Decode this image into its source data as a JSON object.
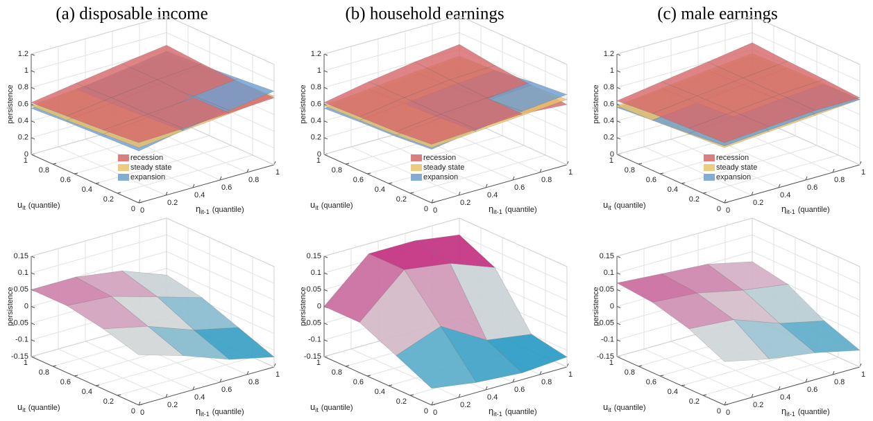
{
  "chart_data": [
    {
      "type": "surface",
      "title": "(a) disposable income",
      "zlabel": "persistence",
      "xlabel": {
        "symbol": "η",
        "subscript": "it-1",
        "text": "(quantile)"
      },
      "ylabel": {
        "symbol": "u",
        "subscript": "it",
        "text": "(quantile)"
      },
      "x": [
        0,
        0.33,
        0.67,
        1
      ],
      "y": [
        0,
        0.33,
        0.67,
        1
      ],
      "xlim": [
        0,
        1
      ],
      "ylim": [
        0,
        1
      ],
      "zlim": [
        0,
        1.2
      ],
      "xticks": [
        0,
        0.2,
        0.4,
        0.6,
        0.8,
        1
      ],
      "yticks": [
        0,
        0.2,
        0.4,
        0.6,
        0.8,
        1
      ],
      "zticks": [
        0,
        0.2,
        0.4,
        0.6,
        0.8,
        1,
        1.2
      ],
      "grid": true,
      "legend": true,
      "series": [
        {
          "name": "recession",
          "color": "#d7696b",
          "values": [
            [
              0.72,
              0.74,
              0.77,
              0.8
            ],
            [
              0.68,
              0.72,
              0.76,
              0.8
            ],
            [
              0.65,
              0.72,
              0.78,
              0.82
            ],
            [
              0.62,
              0.7,
              0.78,
              0.85
            ]
          ]
        },
        {
          "name": "steady state",
          "color": "#eac26a",
          "values": [
            [
              0.66,
              0.71,
              0.76,
              0.82
            ],
            [
              0.63,
              0.68,
              0.74,
              0.8
            ],
            [
              0.6,
              0.65,
              0.71,
              0.77
            ],
            [
              0.58,
              0.63,
              0.68,
              0.74
            ]
          ]
        },
        {
          "name": "expansion",
          "color": "#6f9fcf",
          "values": [
            [
              0.62,
              0.72,
              0.8,
              0.88
            ],
            [
              0.6,
              0.68,
              0.78,
              0.84
            ],
            [
              0.58,
              0.65,
              0.72,
              0.8
            ],
            [
              0.55,
              0.62,
              0.7,
              0.78
            ]
          ]
        }
      ]
    },
    {
      "type": "surface",
      "title": "(b) household earnings",
      "zlabel": "persistence",
      "xlabel": {
        "symbol": "η",
        "subscript": "it-1",
        "text": "(quantile)"
      },
      "ylabel": {
        "symbol": "u",
        "subscript": "it",
        "text": "(quantile)"
      },
      "x": [
        0,
        0.33,
        0.67,
        1
      ],
      "y": [
        0,
        0.33,
        0.67,
        1
      ],
      "xlim": [
        0,
        1
      ],
      "ylim": [
        0,
        1
      ],
      "zlim": [
        0,
        1.2
      ],
      "xticks": [
        0,
        0.2,
        0.4,
        0.6,
        0.8,
        1
      ],
      "yticks": [
        0,
        0.2,
        0.4,
        0.6,
        0.8,
        1
      ],
      "zticks": [
        0,
        0.2,
        0.4,
        0.6,
        0.8,
        1,
        1.2
      ],
      "grid": true,
      "legend": true,
      "series": [
        {
          "name": "recession",
          "color": "#d7696b",
          "values": [
            [
              0.7,
              0.73,
              0.76,
              0.72
            ],
            [
              0.66,
              0.72,
              0.76,
              0.76
            ],
            [
              0.64,
              0.72,
              0.78,
              0.8
            ],
            [
              0.62,
              0.72,
              0.8,
              0.86
            ]
          ]
        },
        {
          "name": "steady state",
          "color": "#eac26a",
          "values": [
            [
              0.66,
              0.7,
              0.74,
              0.78
            ],
            [
              0.62,
              0.67,
              0.72,
              0.76
            ],
            [
              0.6,
              0.65,
              0.7,
              0.74
            ],
            [
              0.58,
              0.63,
              0.68,
              0.72
            ]
          ]
        },
        {
          "name": "expansion",
          "color": "#6f9fcf",
          "values": [
            [
              0.64,
              0.72,
              0.79,
              0.84
            ],
            [
              0.6,
              0.68,
              0.75,
              0.8
            ],
            [
              0.58,
              0.64,
              0.7,
              0.74
            ],
            [
              0.55,
              0.6,
              0.65,
              0.7
            ]
          ]
        }
      ]
    },
    {
      "type": "surface",
      "title": "(c) male earnings",
      "zlabel": "persistence",
      "xlabel": {
        "symbol": "η",
        "subscript": "it-1",
        "text": "(quantile)"
      },
      "ylabel": {
        "symbol": "u",
        "subscript": "it",
        "text": "(quantile)"
      },
      "x": [
        0,
        0.33,
        0.67,
        1
      ],
      "y": [
        0,
        0.33,
        0.67,
        1
      ],
      "xlim": [
        0,
        1
      ],
      "ylim": [
        0,
        1
      ],
      "zlim": [
        0,
        1.2
      ],
      "xticks": [
        0,
        0.2,
        0.4,
        0.6,
        0.8,
        1
      ],
      "yticks": [
        0,
        0.2,
        0.4,
        0.6,
        0.8,
        1
      ],
      "zticks": [
        0,
        0.2,
        0.4,
        0.6,
        0.8,
        1,
        1.2
      ],
      "grid": true,
      "legend": true,
      "series": [
        {
          "name": "recession",
          "color": "#d7696b",
          "values": [
            [
              0.72,
              0.76,
              0.8,
              0.8
            ],
            [
              0.7,
              0.75,
              0.8,
              0.83
            ],
            [
              0.68,
              0.74,
              0.8,
              0.85
            ],
            [
              0.64,
              0.72,
              0.8,
              0.88
            ]
          ]
        },
        {
          "name": "steady state",
          "color": "#eac26a",
          "values": [
            [
              0.66,
              0.7,
              0.74,
              0.78
            ],
            [
              0.63,
              0.68,
              0.73,
              0.78
            ],
            [
              0.6,
              0.66,
              0.72,
              0.77
            ],
            [
              0.58,
              0.64,
              0.7,
              0.75
            ]
          ]
        },
        {
          "name": "expansion",
          "color": "#6f9fcf",
          "values": [
            [
              0.68,
              0.72,
              0.76,
              0.78
            ],
            [
              0.64,
              0.69,
              0.74,
              0.77
            ],
            [
              0.6,
              0.65,
              0.7,
              0.74
            ],
            [
              0.56,
              0.62,
              0.67,
              0.72
            ]
          ]
        }
      ]
    },
    {
      "type": "surface",
      "zlabel": "persistence",
      "xlabel": {
        "symbol": "η",
        "subscript": "it-1",
        "text": "(quantile)"
      },
      "ylabel": {
        "symbol": "u",
        "subscript": "it",
        "text": "(quantile)"
      },
      "x": [
        0,
        0.33,
        0.67,
        1
      ],
      "y": [
        0,
        0.33,
        0.67,
        1
      ],
      "xlim": [
        0,
        1
      ],
      "ylim": [
        0,
        1
      ],
      "zlim": [
        -0.15,
        0.15
      ],
      "xticks": [
        0,
        0.2,
        0.4,
        0.6,
        0.8,
        1
      ],
      "yticks": [
        0,
        0.2,
        0.4,
        0.6,
        0.8,
        1
      ],
      "zticks": [
        -0.15,
        -0.1,
        -0.05,
        0,
        0.05,
        0.1,
        0.15
      ],
      "grid": true,
      "colormap": [
        "#2a9bc4",
        "#d8d8d8",
        "#c2307f"
      ],
      "series": [
        {
          "values": [
            [
              0,
              -0.04,
              -0.09,
              -0.12
            ],
            [
              0.03,
              0,
              -0.05,
              -0.08
            ],
            [
              0.05,
              0.04,
              0,
              -0.04
            ],
            [
              0.05,
              0.05,
              0.03,
              -0.02
            ]
          ]
        }
      ]
    },
    {
      "type": "surface",
      "zlabel": "persistence",
      "xlabel": {
        "symbol": "η",
        "subscript": "it-1",
        "text": "(quantile)"
      },
      "ylabel": {
        "symbol": "u",
        "subscript": "it",
        "text": "(quantile)"
      },
      "x": [
        0,
        0.33,
        0.67,
        1
      ],
      "y": [
        0,
        0.33,
        0.67,
        1
      ],
      "xlim": [
        0,
        1
      ],
      "ylim": [
        0,
        1
      ],
      "zlim": [
        -0.15,
        0.15
      ],
      "xticks": [
        0,
        0.2,
        0.4,
        0.6,
        0.8,
        1
      ],
      "yticks": [
        0,
        0.2,
        0.4,
        0.6,
        0.8,
        1
      ],
      "zticks": [
        -0.15,
        -0.1,
        -0.05,
        0,
        0.05,
        0.1,
        0.15
      ],
      "grid": true,
      "colormap": [
        "#2a9bc4",
        "#d8d8d8",
        "#c2307f"
      ],
      "series": [
        {
          "values": [
            [
              -0.1,
              -0.12,
              -0.13,
              -0.12
            ],
            [
              -0.05,
              0,
              -0.08,
              -0.1
            ],
            [
              0,
              0.12,
              0.1,
              0.05
            ],
            [
              0,
              0.12,
              0.12,
              0.1
            ]
          ]
        }
      ]
    },
    {
      "type": "surface",
      "zlabel": "persistence",
      "xlabel": {
        "symbol": "η",
        "subscript": "it-1",
        "text": "(quantile)"
      },
      "ylabel": {
        "symbol": "u",
        "subscript": "it",
        "text": "(quantile)"
      },
      "x": [
        0,
        0.33,
        0.67,
        1
      ],
      "y": [
        0,
        0.33,
        0.67,
        1
      ],
      "xlim": [
        0,
        1
      ],
      "ylim": [
        0,
        1
      ],
      "zlim": [
        -0.15,
        0.15
      ],
      "xticks": [
        0,
        0.2,
        0.4,
        0.6,
        0.8,
        1
      ],
      "yticks": [
        0,
        0.2,
        0.4,
        0.6,
        0.8,
        1
      ],
      "zticks": [
        -0.15,
        -0.1,
        -0.05,
        0,
        0.05,
        0.1,
        0.15
      ],
      "grid": true,
      "colormap": [
        "#2a9bc4",
        "#d8d8d8",
        "#c2307f"
      ],
      "series": [
        {
          "values": [
            [
              -0.02,
              -0.05,
              -0.07,
              -0.1
            ],
            [
              0.03,
              0.02,
              -0.03,
              -0.06
            ],
            [
              0.06,
              0.05,
              0.02,
              0
            ],
            [
              0.07,
              0.06,
              0.05,
              0.02
            ]
          ]
        }
      ]
    }
  ]
}
